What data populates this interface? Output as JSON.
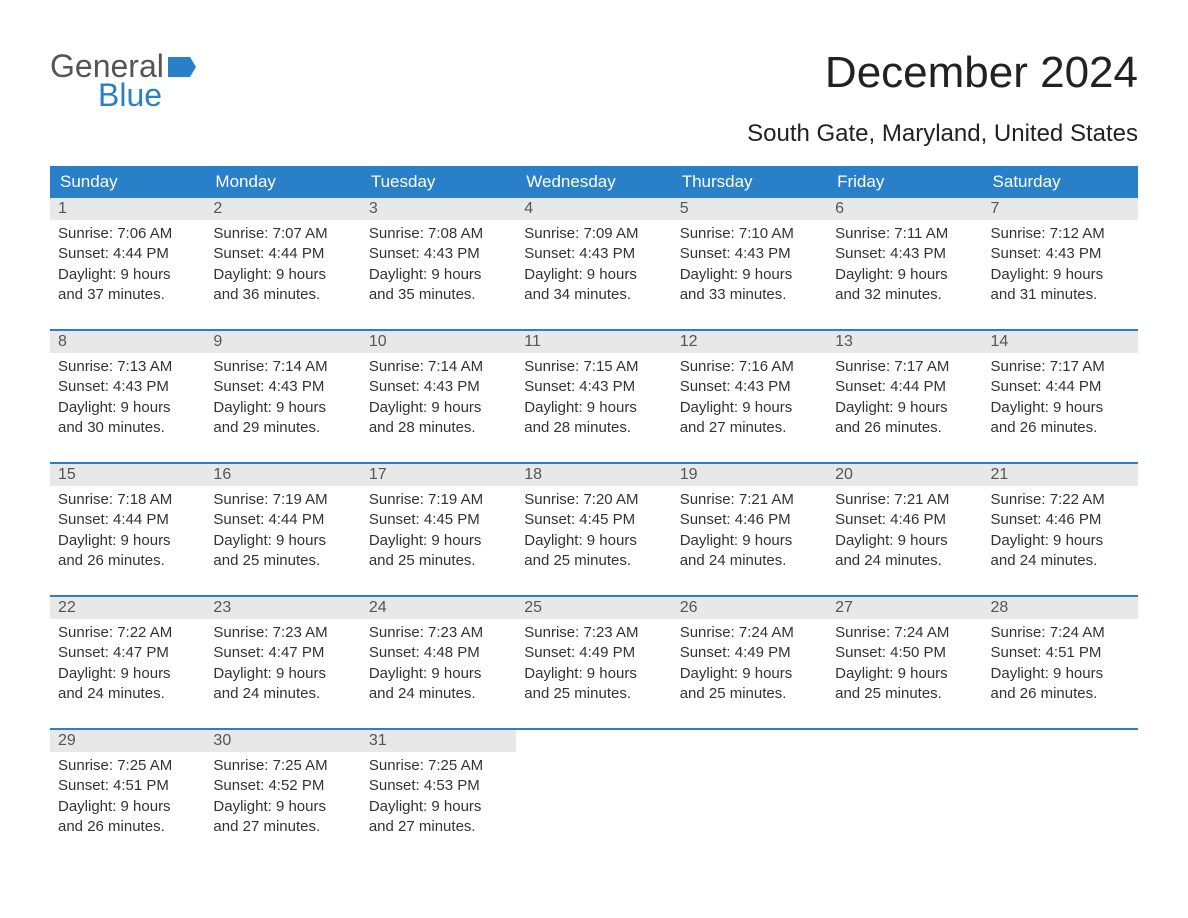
{
  "logo": {
    "word1": "General",
    "word2": "Blue",
    "flag_color": "#2a7fc9"
  },
  "title": "December 2024",
  "subtitle": "South Gate, Maryland, United States",
  "colors": {
    "header_bg": "#2a7fc9",
    "header_text": "#ffffff",
    "daynum_bg": "#e8e8e8",
    "daynum_text": "#555555",
    "body_text": "#333333",
    "rule": "#2a7fc9",
    "page_bg": "#ffffff"
  },
  "typography": {
    "title_fontsize": 44,
    "subtitle_fontsize": 24,
    "header_fontsize": 17,
    "daynum_fontsize": 16,
    "body_fontsize": 15
  },
  "day_headers": [
    "Sunday",
    "Monday",
    "Tuesday",
    "Wednesday",
    "Thursday",
    "Friday",
    "Saturday"
  ],
  "weeks": [
    [
      {
        "num": "1",
        "sunrise": "Sunrise: 7:06 AM",
        "sunset": "Sunset: 4:44 PM",
        "dl1": "Daylight: 9 hours",
        "dl2": "and 37 minutes."
      },
      {
        "num": "2",
        "sunrise": "Sunrise: 7:07 AM",
        "sunset": "Sunset: 4:44 PM",
        "dl1": "Daylight: 9 hours",
        "dl2": "and 36 minutes."
      },
      {
        "num": "3",
        "sunrise": "Sunrise: 7:08 AM",
        "sunset": "Sunset: 4:43 PM",
        "dl1": "Daylight: 9 hours",
        "dl2": "and 35 minutes."
      },
      {
        "num": "4",
        "sunrise": "Sunrise: 7:09 AM",
        "sunset": "Sunset: 4:43 PM",
        "dl1": "Daylight: 9 hours",
        "dl2": "and 34 minutes."
      },
      {
        "num": "5",
        "sunrise": "Sunrise: 7:10 AM",
        "sunset": "Sunset: 4:43 PM",
        "dl1": "Daylight: 9 hours",
        "dl2": "and 33 minutes."
      },
      {
        "num": "6",
        "sunrise": "Sunrise: 7:11 AM",
        "sunset": "Sunset: 4:43 PM",
        "dl1": "Daylight: 9 hours",
        "dl2": "and 32 minutes."
      },
      {
        "num": "7",
        "sunrise": "Sunrise: 7:12 AM",
        "sunset": "Sunset: 4:43 PM",
        "dl1": "Daylight: 9 hours",
        "dl2": "and 31 minutes."
      }
    ],
    [
      {
        "num": "8",
        "sunrise": "Sunrise: 7:13 AM",
        "sunset": "Sunset: 4:43 PM",
        "dl1": "Daylight: 9 hours",
        "dl2": "and 30 minutes."
      },
      {
        "num": "9",
        "sunrise": "Sunrise: 7:14 AM",
        "sunset": "Sunset: 4:43 PM",
        "dl1": "Daylight: 9 hours",
        "dl2": "and 29 minutes."
      },
      {
        "num": "10",
        "sunrise": "Sunrise: 7:14 AM",
        "sunset": "Sunset: 4:43 PM",
        "dl1": "Daylight: 9 hours",
        "dl2": "and 28 minutes."
      },
      {
        "num": "11",
        "sunrise": "Sunrise: 7:15 AM",
        "sunset": "Sunset: 4:43 PM",
        "dl1": "Daylight: 9 hours",
        "dl2": "and 28 minutes."
      },
      {
        "num": "12",
        "sunrise": "Sunrise: 7:16 AM",
        "sunset": "Sunset: 4:43 PM",
        "dl1": "Daylight: 9 hours",
        "dl2": "and 27 minutes."
      },
      {
        "num": "13",
        "sunrise": "Sunrise: 7:17 AM",
        "sunset": "Sunset: 4:44 PM",
        "dl1": "Daylight: 9 hours",
        "dl2": "and 26 minutes."
      },
      {
        "num": "14",
        "sunrise": "Sunrise: 7:17 AM",
        "sunset": "Sunset: 4:44 PM",
        "dl1": "Daylight: 9 hours",
        "dl2": "and 26 minutes."
      }
    ],
    [
      {
        "num": "15",
        "sunrise": "Sunrise: 7:18 AM",
        "sunset": "Sunset: 4:44 PM",
        "dl1": "Daylight: 9 hours",
        "dl2": "and 26 minutes."
      },
      {
        "num": "16",
        "sunrise": "Sunrise: 7:19 AM",
        "sunset": "Sunset: 4:44 PM",
        "dl1": "Daylight: 9 hours",
        "dl2": "and 25 minutes."
      },
      {
        "num": "17",
        "sunrise": "Sunrise: 7:19 AM",
        "sunset": "Sunset: 4:45 PM",
        "dl1": "Daylight: 9 hours",
        "dl2": "and 25 minutes."
      },
      {
        "num": "18",
        "sunrise": "Sunrise: 7:20 AM",
        "sunset": "Sunset: 4:45 PM",
        "dl1": "Daylight: 9 hours",
        "dl2": "and 25 minutes."
      },
      {
        "num": "19",
        "sunrise": "Sunrise: 7:21 AM",
        "sunset": "Sunset: 4:46 PM",
        "dl1": "Daylight: 9 hours",
        "dl2": "and 24 minutes."
      },
      {
        "num": "20",
        "sunrise": "Sunrise: 7:21 AM",
        "sunset": "Sunset: 4:46 PM",
        "dl1": "Daylight: 9 hours",
        "dl2": "and 24 minutes."
      },
      {
        "num": "21",
        "sunrise": "Sunrise: 7:22 AM",
        "sunset": "Sunset: 4:46 PM",
        "dl1": "Daylight: 9 hours",
        "dl2": "and 24 minutes."
      }
    ],
    [
      {
        "num": "22",
        "sunrise": "Sunrise: 7:22 AM",
        "sunset": "Sunset: 4:47 PM",
        "dl1": "Daylight: 9 hours",
        "dl2": "and 24 minutes."
      },
      {
        "num": "23",
        "sunrise": "Sunrise: 7:23 AM",
        "sunset": "Sunset: 4:47 PM",
        "dl1": "Daylight: 9 hours",
        "dl2": "and 24 minutes."
      },
      {
        "num": "24",
        "sunrise": "Sunrise: 7:23 AM",
        "sunset": "Sunset: 4:48 PM",
        "dl1": "Daylight: 9 hours",
        "dl2": "and 24 minutes."
      },
      {
        "num": "25",
        "sunrise": "Sunrise: 7:23 AM",
        "sunset": "Sunset: 4:49 PM",
        "dl1": "Daylight: 9 hours",
        "dl2": "and 25 minutes."
      },
      {
        "num": "26",
        "sunrise": "Sunrise: 7:24 AM",
        "sunset": "Sunset: 4:49 PM",
        "dl1": "Daylight: 9 hours",
        "dl2": "and 25 minutes."
      },
      {
        "num": "27",
        "sunrise": "Sunrise: 7:24 AM",
        "sunset": "Sunset: 4:50 PM",
        "dl1": "Daylight: 9 hours",
        "dl2": "and 25 minutes."
      },
      {
        "num": "28",
        "sunrise": "Sunrise: 7:24 AM",
        "sunset": "Sunset: 4:51 PM",
        "dl1": "Daylight: 9 hours",
        "dl2": "and 26 minutes."
      }
    ],
    [
      {
        "num": "29",
        "sunrise": "Sunrise: 7:25 AM",
        "sunset": "Sunset: 4:51 PM",
        "dl1": "Daylight: 9 hours",
        "dl2": "and 26 minutes."
      },
      {
        "num": "30",
        "sunrise": "Sunrise: 7:25 AM",
        "sunset": "Sunset: 4:52 PM",
        "dl1": "Daylight: 9 hours",
        "dl2": "and 27 minutes."
      },
      {
        "num": "31",
        "sunrise": "Sunrise: 7:25 AM",
        "sunset": "Sunset: 4:53 PM",
        "dl1": "Daylight: 9 hours",
        "dl2": "and 27 minutes."
      },
      null,
      null,
      null,
      null
    ]
  ]
}
